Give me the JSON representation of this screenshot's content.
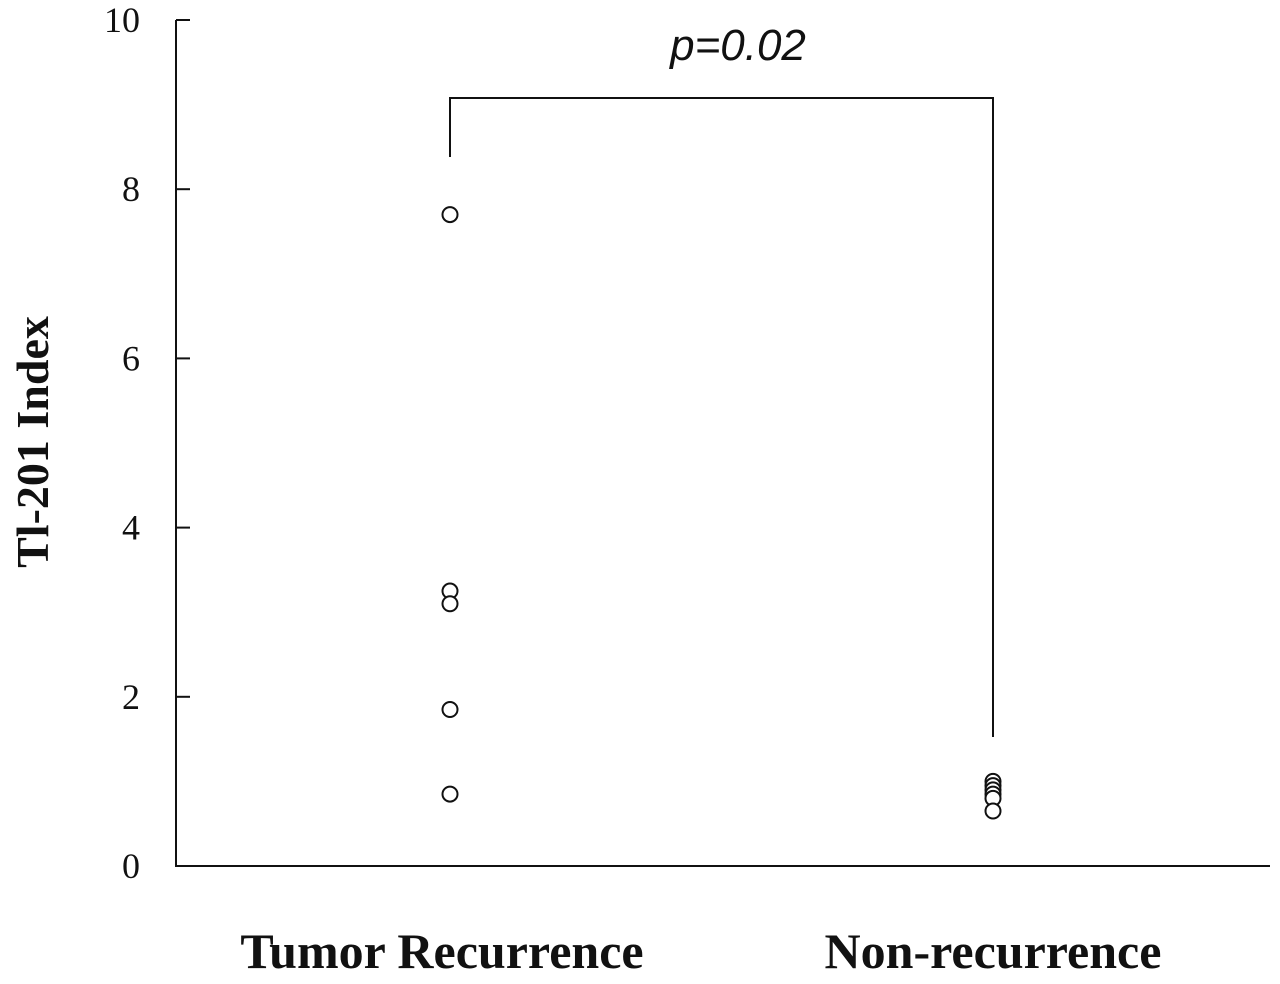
{
  "chart_data": {
    "type": "scatter",
    "ylabel": "Tl-201 Index",
    "xlabel": "",
    "ylim": [
      0,
      10
    ],
    "yticks": [
      "0",
      "2",
      "4",
      "6",
      "8",
      "10"
    ],
    "grid": false,
    "categories": [
      "Tumor Recurrence",
      "Non-recurrence"
    ],
    "series": [
      {
        "category": "Tumor Recurrence",
        "values": [
          7.7,
          3.25,
          3.1,
          1.85,
          0.85
        ]
      },
      {
        "category": "Non-recurrence",
        "values": [
          1.0,
          0.95,
          0.9,
          0.85,
          0.8,
          0.65
        ]
      }
    ],
    "annotation": {
      "text": "p=0.02",
      "type": "significance-bracket",
      "between": [
        "Tumor Recurrence",
        "Non-recurrence"
      ]
    },
    "marker": "open-circle",
    "colors": {
      "ink": "#111111",
      "background": "#ffffff"
    }
  }
}
